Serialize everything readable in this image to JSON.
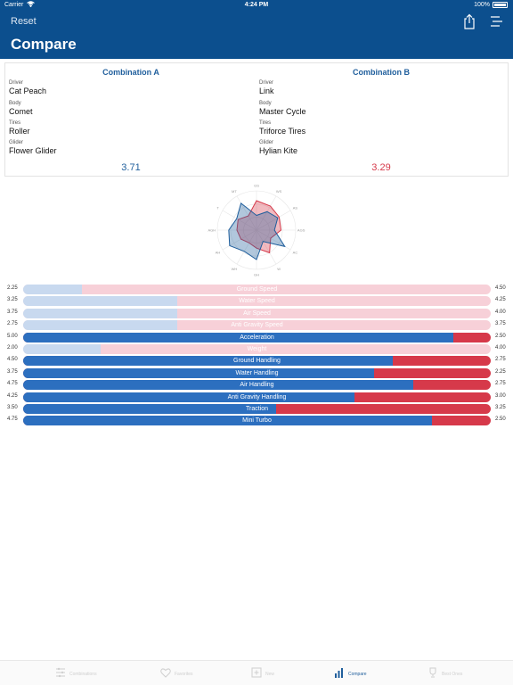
{
  "status": {
    "carrier": "Carrier",
    "time": "4:24 PM",
    "battery": "100%"
  },
  "nav": {
    "reset_label": "Reset",
    "title": "Compare"
  },
  "combination_a": {
    "title": "Combination A",
    "fields": [
      {
        "label": "Driver",
        "value": "Cat Peach"
      },
      {
        "label": "Body",
        "value": "Comet"
      },
      {
        "label": "Tires",
        "value": "Roller"
      },
      {
        "label": "Glider",
        "value": "Flower Glider"
      }
    ],
    "score": "3.71"
  },
  "combination_b": {
    "title": "Combination B",
    "fields": [
      {
        "label": "Driver",
        "value": "Link"
      },
      {
        "label": "Body",
        "value": "Master Cycle"
      },
      {
        "label": "Tires",
        "value": "Triforce Tires"
      },
      {
        "label": "Glider",
        "value": "Hylian Kite"
      }
    ],
    "score": "3.29"
  },
  "stats": [
    {
      "label": "Ground Speed",
      "a": "2.25",
      "b": "4.50",
      "a_share": 0.125,
      "faded": true
    },
    {
      "label": "Water Speed",
      "a": "3.25",
      "b": "4.25",
      "a_share": 0.33,
      "faded": true
    },
    {
      "label": "Air Speed",
      "a": "3.75",
      "b": "4.00",
      "a_share": 0.33,
      "faded": true
    },
    {
      "label": "Anti Gravity Speed",
      "a": "2.75",
      "b": "3.75",
      "a_share": 0.33,
      "faded": true
    },
    {
      "label": "Acceleration",
      "a": "5.00",
      "b": "2.50",
      "a_share": 0.92,
      "faded": false
    },
    {
      "label": "Weight",
      "a": "2.00",
      "b": "4.00",
      "a_share": 0.165,
      "faded": true
    },
    {
      "label": "Ground Handling",
      "a": "4.50",
      "b": "2.75",
      "a_share": 0.79,
      "faded": false
    },
    {
      "label": "Water Handling",
      "a": "3.75",
      "b": "2.25",
      "a_share": 0.75,
      "faded": false
    },
    {
      "label": "Air Handling",
      "a": "4.75",
      "b": "2.75",
      "a_share": 0.834,
      "faded": false
    },
    {
      "label": "Anti Gravity Handling",
      "a": "4.25",
      "b": "3.00",
      "a_share": 0.708,
      "faded": false
    },
    {
      "label": "Traction",
      "a": "3.50",
      "b": "3.25",
      "a_share": 0.54,
      "faded": false
    },
    {
      "label": "Mini Turbo",
      "a": "4.75",
      "b": "2.50",
      "a_share": 0.875,
      "faded": false
    }
  ],
  "radar": {
    "axis_labels": [
      "GS",
      "WS",
      "AS",
      "AGS",
      "AC",
      "W",
      "GH",
      "WH",
      "AH",
      "AGH",
      "T",
      "MT"
    ],
    "series_a": [
      2.25,
      3.25,
      3.75,
      2.75,
      5.0,
      2.0,
      4.5,
      3.75,
      4.75,
      4.25,
      3.5,
      4.75
    ],
    "series_b": [
      4.5,
      4.25,
      4.0,
      3.75,
      2.5,
      4.0,
      2.75,
      2.25,
      2.75,
      3.0,
      3.25,
      2.5
    ],
    "max": 6,
    "color_a": "#1f5e9c",
    "color_b": "#d6394a"
  },
  "tabs": [
    {
      "label": "Combinations",
      "icon": "sliders-icon"
    },
    {
      "label": "Favorites",
      "icon": "heart-icon"
    },
    {
      "label": "New",
      "icon": "plus-square-icon"
    },
    {
      "label": "Compare",
      "icon": "bar-chart-icon",
      "active": true
    },
    {
      "label": "Best Ones",
      "icon": "trophy-icon"
    }
  ],
  "colors": {
    "header": "#0c4f8e",
    "accent_a": "#2c6fbf",
    "accent_b": "#d6394a"
  }
}
